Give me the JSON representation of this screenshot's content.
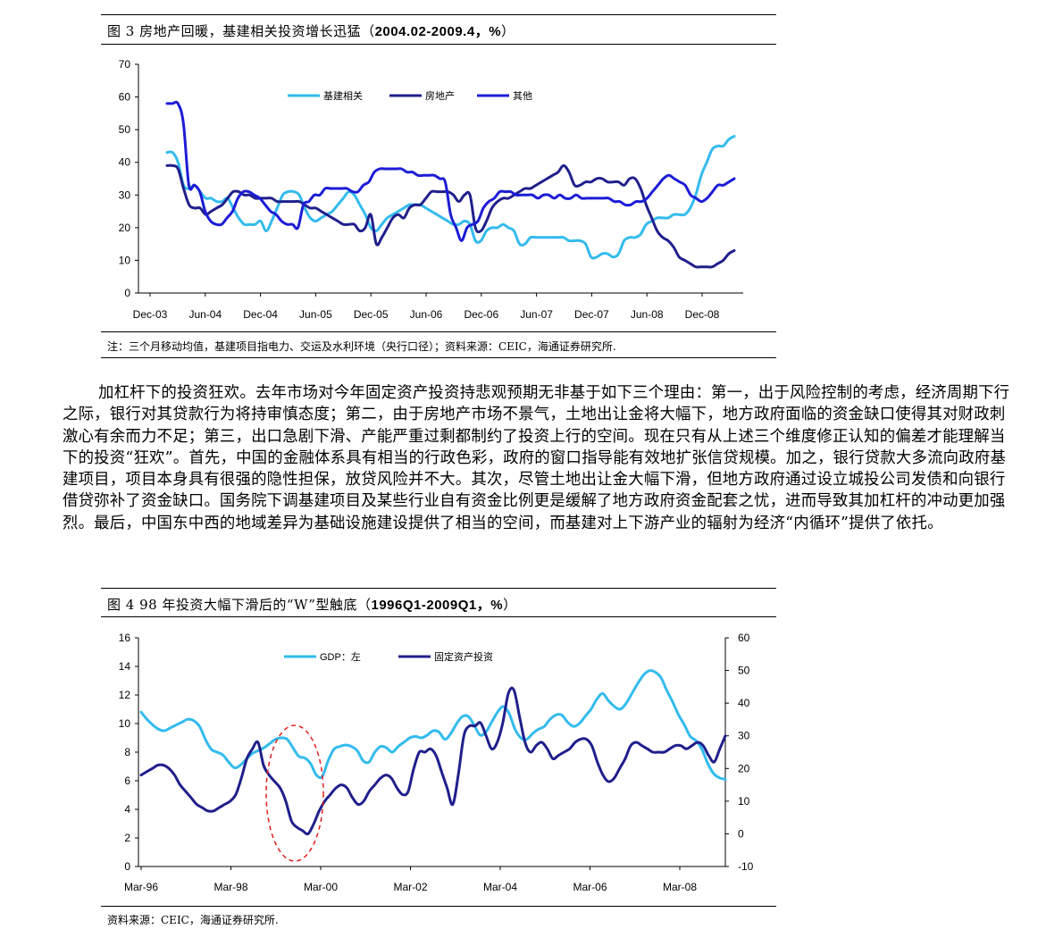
{
  "fig3": {
    "title_prefix": "图 3 房地产回暖，基建相关投资增长迅猛（",
    "title_bold": "2004.02-2009.4，%",
    "title_suffix": "）",
    "note": "注：三个月移动均值，基建项目指电力、交运及水利环境（央行口径）；资料来源：CEIC，海通证券研究所."
  },
  "paragraph": "加杠杆下的投资狂欢。去年市场对今年固定资产投资持悲观预期无非基于如下三个理由：第一，出于风险控制的考虑，经济周期下行之际，银行对其贷款行为将持审慎态度；第二，由于房地产市场不景气，土地出让金将大幅下，地方政府面临的资金缺口使得其对财政刺激心有余而力不足；第三，出口急剧下滑、产能严重过剩都制约了投资上行的空间。现在只有从上述三个维度修正认知的偏差才能理解当下的投资“狂欢”。首先，中国的金融体系具有相当的行政色彩，政府的窗口指导能有效地扩张信贷规模。加之，银行贷款大多流向政府基建项目，项目本身具有很强的隐性担保，放贷风险并不大。其次，尽管土地出让金大幅下滑，但地方政府通过设立城投公司发债和向银行借贷弥补了资金缺口。国务院下调基建项目及某些行业自有资金比例更是缓解了地方政府资金配套之忧，进而导致其加杠杆的冲动更加强烈。最后，中国东中西的地域差异为基础设施建设提供了相当的空间，而基建对上下游产业的辐射为经济“内循环”提供了依托。",
  "fig4": {
    "title_prefix": "图 4 98 年投资大幅下滑后的“W”型触底（",
    "title_bold": "1996Q1-2009Q1，%",
    "title_suffix": "）",
    "note": "资料来源：CEIC，海通证券研究所."
  },
  "chart_data": [
    {
      "type": "line",
      "title": "房地产回暖，基建相关投资增长迅猛",
      "ylim": [
        0,
        70
      ],
      "yticks": [
        "0",
        "10",
        "20",
        "30",
        "40",
        "50",
        "60",
        "70"
      ],
      "xticks": [
        "Dec-03",
        "Jun-04",
        "Dec-04",
        "Jun-05",
        "Dec-05",
        "Jun-06",
        "Dec-06",
        "Jun-07",
        "Dec-07",
        "Jun-08",
        "Dec-08"
      ],
      "x_start": 2004.0,
      "x_end": 2009.33,
      "legend": [
        "基建相关",
        "房地产",
        "其他"
      ],
      "series": [
        {
          "name": "基建相关",
          "color": "#33BBEE",
          "values": [
            43,
            43,
            40,
            33,
            32,
            33,
            31,
            29,
            29,
            28,
            28,
            29,
            26,
            23,
            21,
            21,
            21,
            22,
            19,
            22,
            26,
            30,
            31,
            31,
            30,
            26,
            23,
            22,
            23,
            24,
            25,
            27,
            29,
            31,
            30,
            27,
            24,
            20,
            19,
            21,
            23,
            24,
            25,
            26,
            27,
            27,
            27,
            26,
            25,
            24,
            23,
            22,
            21,
            21,
            22,
            21,
            16,
            16,
            19,
            20,
            20,
            21,
            20,
            19,
            15,
            15,
            17,
            17,
            17,
            17,
            17,
            17,
            17,
            16,
            16,
            16,
            15,
            11,
            11,
            12,
            12,
            11,
            12,
            16,
            17,
            17,
            18,
            21,
            22,
            23,
            23,
            23,
            24,
            24,
            24,
            26,
            30,
            36,
            40,
            44,
            45,
            45,
            47,
            48
          ]
        },
        {
          "name": "房地产",
          "color": "#1F1F8C",
          "values": [
            39,
            39,
            38,
            32,
            27,
            26,
            26,
            24,
            25,
            26,
            27,
            29,
            31,
            31,
            30,
            30,
            29,
            29,
            29,
            29,
            28,
            28,
            28,
            28,
            28,
            27,
            26,
            26,
            25,
            24,
            23,
            22,
            21,
            21,
            21,
            19,
            20,
            24,
            15,
            17,
            20,
            23,
            24,
            23,
            26,
            27,
            27,
            29,
            31,
            31,
            31,
            31,
            30,
            28,
            30,
            30,
            20,
            19,
            22,
            26,
            28,
            29,
            29,
            30,
            31,
            32,
            32,
            33,
            34,
            35,
            36,
            37,
            39,
            37,
            33,
            33,
            34,
            34,
            35,
            35,
            34,
            34,
            34,
            33,
            35,
            35,
            32,
            27,
            23,
            19,
            17,
            16,
            14,
            11,
            10,
            9,
            8,
            8,
            8,
            8,
            9,
            10,
            12,
            13
          ]
        },
        {
          "name": "其他",
          "color": "#1C1CD6",
          "values": [
            58,
            58,
            58,
            52,
            33,
            33,
            31,
            25,
            22,
            21,
            21,
            23,
            25,
            29,
            31,
            31,
            30,
            29,
            27,
            25,
            24,
            22,
            21,
            21,
            20,
            27,
            28,
            30,
            30,
            32,
            32,
            32,
            32,
            32,
            31,
            31,
            33,
            34,
            37,
            38,
            38,
            38,
            38,
            38,
            37,
            37,
            36,
            36,
            36,
            36,
            35,
            34,
            24,
            20,
            16,
            20,
            21,
            22,
            26,
            28,
            29,
            31,
            31,
            31,
            30,
            30,
            30,
            30,
            29,
            30,
            30,
            29,
            30,
            29,
            29,
            30,
            29,
            29,
            29,
            29,
            29,
            29,
            28,
            28,
            27,
            27,
            28,
            28,
            29,
            31,
            33,
            35,
            36,
            35,
            34,
            33,
            30,
            29,
            28,
            29,
            31,
            33,
            33,
            34,
            35
          ]
        }
      ]
    },
    {
      "type": "line",
      "title": "98年投资大幅下滑后的“W”型触底",
      "ylim_left": [
        0,
        16
      ],
      "ylim_right": [
        -10,
        60
      ],
      "yticks_left": [
        "0",
        "2",
        "4",
        "6",
        "8",
        "10",
        "12",
        "14",
        "16"
      ],
      "yticks_right": [
        "-10",
        "0",
        "10",
        "20",
        "30",
        "40",
        "50",
        "60"
      ],
      "xticks": [
        "Mar-96",
        "Mar-98",
        "Mar-00",
        "Mar-02",
        "Mar-04",
        "Mar-06",
        "Mar-08"
      ],
      "x_start": 1996.0,
      "x_end": 2009.1,
      "legend": [
        "GDP：左",
        "固定资产投资"
      ],
      "series": [
        {
          "name": "GDP：左",
          "color": "#33BBEE",
          "axis": "left",
          "values": [
            10.8,
            10.3,
            9.9,
            9.6,
            9.5,
            9.7,
            9.9,
            10.1,
            10.3,
            10.2,
            9.8,
            8.9,
            8.2,
            8.0,
            7.8,
            7.3,
            6.9,
            7.1,
            7.5,
            7.9,
            8.1,
            8.3,
            8.6,
            8.9,
            9.0,
            8.9,
            8.3,
            7.7,
            7.6,
            7.2,
            6.4,
            6.3,
            7.4,
            8.2,
            8.4,
            8.5,
            8.4,
            8.1,
            7.4,
            7.3,
            8.0,
            8.4,
            8.3,
            8.0,
            8.4,
            8.7,
            9.0,
            9.1,
            9.0,
            9.2,
            9.5,
            9.4,
            8.9,
            9.3,
            10.0,
            10.5,
            10.5,
            9.9,
            9.2,
            9.4,
            10.1,
            10.8,
            11.2,
            10.7,
            9.6,
            9.0,
            8.9,
            9.3,
            9.6,
            9.8,
            10.3,
            10.6,
            10.6,
            10.1,
            9.8,
            10.0,
            10.5,
            11.0,
            11.7,
            12.1,
            11.6,
            11.2,
            11.0,
            11.4,
            12.1,
            12.8,
            13.4,
            13.7,
            13.6,
            13.2,
            12.3,
            11.5,
            10.6,
            9.9,
            9.1,
            8.8,
            8.2,
            7.2,
            6.5,
            6.2,
            6.1
          ]
        },
        {
          "name": "固定资产投资",
          "color": "#1F1F8C",
          "axis": "right",
          "values": [
            18,
            19,
            20,
            21,
            21,
            20,
            18,
            15,
            13,
            11,
            9,
            8,
            7,
            7,
            8,
            9,
            10,
            12,
            17,
            23,
            26,
            28,
            21,
            18,
            16,
            14,
            10,
            4,
            2,
            1,
            0,
            3,
            7,
            10,
            12,
            14,
            15,
            14,
            11,
            9,
            10,
            13,
            15,
            17,
            18,
            17,
            14,
            12,
            13,
            20,
            25,
            25,
            26,
            24,
            19,
            14,
            9,
            18,
            30,
            33,
            33,
            34,
            30,
            26,
            28,
            34,
            43,
            44,
            36,
            28,
            25,
            27,
            28,
            26,
            23,
            24,
            25,
            26,
            28,
            29,
            29,
            27,
            22,
            18,
            16,
            17,
            20,
            23,
            27,
            28,
            27,
            26,
            25,
            25,
            25,
            26,
            27,
            27,
            26,
            27,
            28,
            27,
            24,
            22,
            26,
            30
          ]
        }
      ]
    }
  ]
}
